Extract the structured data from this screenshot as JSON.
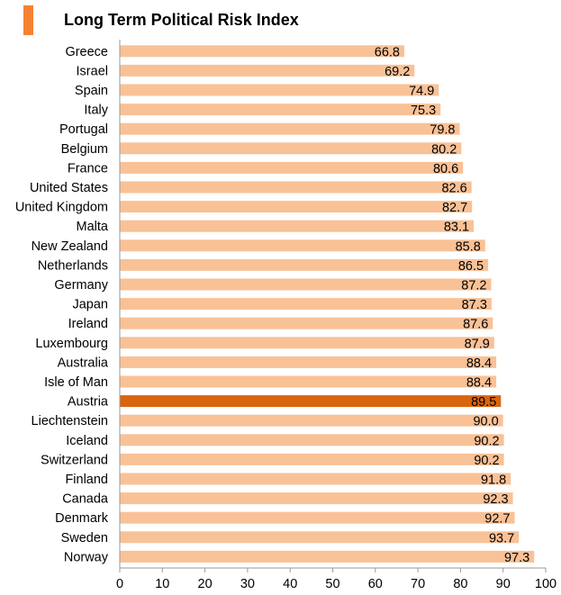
{
  "chart_data": {
    "type": "bar",
    "orientation": "horizontal",
    "title": "Long Term Political Risk Index",
    "categories": [
      "Greece",
      "Israel",
      "Spain",
      "Italy",
      "Portugal",
      "Belgium",
      "France",
      "United States",
      "United Kingdom",
      "Malta",
      "New Zealand",
      "Netherlands",
      "Germany",
      "Japan",
      "Ireland",
      "Luxembourg",
      "Australia",
      "Isle of Man",
      "Austria",
      "Liechtenstein",
      "Iceland",
      "Switzerland",
      "Finland",
      "Canada",
      "Denmark",
      "Sweden",
      "Norway"
    ],
    "values": [
      66.8,
      69.2,
      74.9,
      75.3,
      79.8,
      80.2,
      80.6,
      82.6,
      82.7,
      83.1,
      85.8,
      86.5,
      87.2,
      87.3,
      87.6,
      87.9,
      88.4,
      88.4,
      89.5,
      90.0,
      90.2,
      90.2,
      91.8,
      92.3,
      92.7,
      93.7,
      97.3
    ],
    "value_labels": [
      "66.8",
      "69.2",
      "74.9",
      "75.3",
      "79.8",
      "80.2",
      "80.6",
      "82.6",
      "82.7",
      "83.1",
      "85.8",
      "86.5",
      "87.2",
      "87.3",
      "87.6",
      "87.9",
      "88.4",
      "88.4",
      "89.5",
      "90.0",
      "90.2",
      "90.2",
      "91.8",
      "92.3",
      "92.7",
      "93.7",
      "97.3"
    ],
    "highlight": "Austria",
    "xlim": [
      0,
      100
    ],
    "xticks": [
      0,
      10,
      20,
      30,
      40,
      50,
      60,
      70,
      80,
      90,
      100
    ],
    "xlabel": "",
    "ylabel": "",
    "grid": false,
    "legend": "none",
    "colors": {
      "bar": "#f9c196",
      "highlight": "#d9650f",
      "accent": "#f58232"
    }
  }
}
